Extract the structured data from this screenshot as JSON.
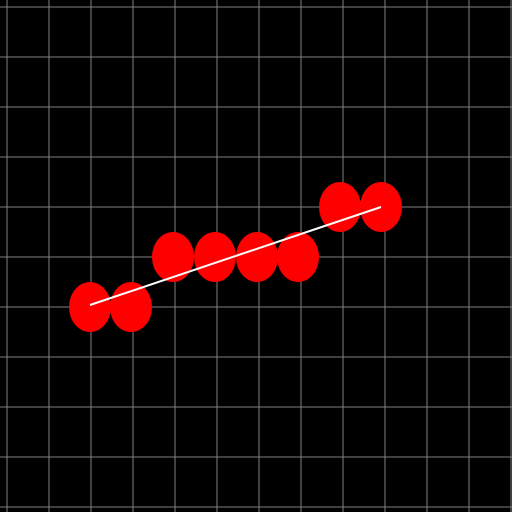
{
  "canvas": {
    "background_color": "#000000",
    "grid_color": "#808080",
    "grid_spacing_cells": 1
  },
  "grid": {
    "columns": 12,
    "rows": 12
  },
  "blobs": {
    "color": "#ff0000",
    "count": 8
  },
  "connector": {
    "color": "#ffffff",
    "from_blob": 0,
    "to_blob": 7
  }
}
